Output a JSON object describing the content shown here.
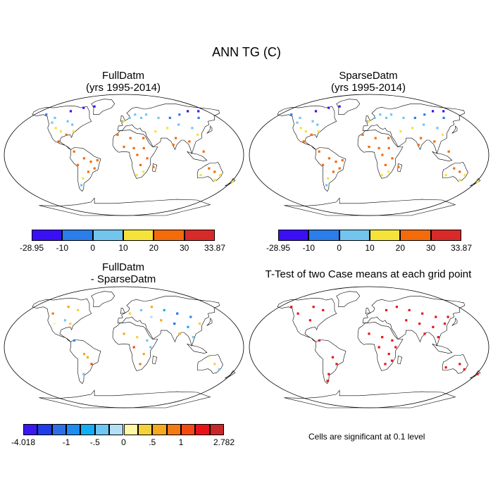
{
  "figure": {
    "title": "ANN TG (C)"
  },
  "panels": {
    "full": {
      "title": "FullDatm",
      "subtitle": "(yrs 1995-2014)"
    },
    "sparse": {
      "title": "SparseDatm",
      "subtitle": "(yrs 1995-2014)"
    },
    "diff": {
      "title": "FullDatm",
      "subtitle": "- SparseDatm"
    },
    "ttest": {
      "title": "T-Test of two Case means at each grid point",
      "note": "Cells are significant at 0.1 level"
    }
  },
  "colorbar_abs": {
    "colors": [
      "#3a0ff5",
      "#2b7de9",
      "#72c5ef",
      "#f6e33a",
      "#f46b0a",
      "#d92a2a"
    ],
    "labels": [
      "-28.95",
      "-10",
      "0",
      "10",
      "20",
      "30",
      "33.87"
    ]
  },
  "colorbar_diff": {
    "colors": [
      "#3a18f0",
      "#1f3ee8",
      "#2e6fe6",
      "#1e8cf0",
      "#14aef5",
      "#6ec6f2",
      "#b4e0f6",
      "#fff7a8",
      "#f6d23a",
      "#f6a81e",
      "#f47a12",
      "#f44a12",
      "#e8121a",
      "#c8282a"
    ],
    "labels": [
      "-4.018",
      "-1",
      "-.5",
      "0",
      ".5",
      "1",
      "2.782"
    ]
  },
  "map_points": {
    "full": [
      {
        "x": -100,
        "y": 65,
        "v": -20
      },
      {
        "x": -80,
        "y": 70,
        "v": -25
      },
      {
        "x": -60,
        "y": 72,
        "v": -28
      },
      {
        "x": -140,
        "y": 60,
        "v": -5
      },
      {
        "x": -120,
        "y": 55,
        "v": 2
      },
      {
        "x": -95,
        "y": 50,
        "v": 4
      },
      {
        "x": -85,
        "y": 45,
        "v": 8
      },
      {
        "x": -100,
        "y": 35,
        "v": 15
      },
      {
        "x": -110,
        "y": 40,
        "v": 10
      },
      {
        "x": -90,
        "y": 30,
        "v": 20
      },
      {
        "x": -80,
        "y": 35,
        "v": 16
      },
      {
        "x": -120,
        "y": 48,
        "v": 9
      },
      {
        "x": -100,
        "y": 20,
        "v": 24
      },
      {
        "x": -75,
        "y": 5,
        "v": 26
      },
      {
        "x": -60,
        "y": -5,
        "v": 27
      },
      {
        "x": -50,
        "y": -10,
        "v": 26
      },
      {
        "x": -45,
        "y": -20,
        "v": 24
      },
      {
        "x": -55,
        "y": -25,
        "v": 20
      },
      {
        "x": -65,
        "y": -35,
        "v": 15
      },
      {
        "x": -70,
        "y": -45,
        "v": 8
      },
      {
        "x": -40,
        "y": -8,
        "v": 26
      },
      {
        "x": -70,
        "y": -15,
        "v": 22
      },
      {
        "x": 0,
        "y": 50,
        "v": 10
      },
      {
        "x": 10,
        "y": 55,
        "v": 8
      },
      {
        "x": 20,
        "y": 60,
        "v": 4
      },
      {
        "x": 30,
        "y": 55,
        "v": 6
      },
      {
        "x": 40,
        "y": 60,
        "v": 2
      },
      {
        "x": 60,
        "y": 55,
        "v": 1
      },
      {
        "x": 80,
        "y": 55,
        "v": -2
      },
      {
        "x": 100,
        "y": 60,
        "v": -8
      },
      {
        "x": 120,
        "y": 65,
        "v": -12
      },
      {
        "x": 130,
        "y": 55,
        "v": -5
      },
      {
        "x": 140,
        "y": 65,
        "v": -15
      },
      {
        "x": 90,
        "y": 45,
        "v": 5
      },
      {
        "x": 110,
        "y": 40,
        "v": 9
      },
      {
        "x": 70,
        "y": 40,
        "v": 12
      },
      {
        "x": 50,
        "y": 35,
        "v": 18
      },
      {
        "x": 80,
        "y": 25,
        "v": 26
      },
      {
        "x": 100,
        "y": 20,
        "v": 27
      },
      {
        "x": 115,
        "y": 30,
        "v": 19
      },
      {
        "x": 75,
        "y": 15,
        "v": 28
      },
      {
        "x": 120,
        "y": 5,
        "v": 27
      },
      {
        "x": -10,
        "y": 30,
        "v": 20
      },
      {
        "x": 10,
        "y": 25,
        "v": 26
      },
      {
        "x": 30,
        "y": 25,
        "v": 27
      },
      {
        "x": 0,
        "y": 12,
        "v": 29
      },
      {
        "x": 15,
        "y": 10,
        "v": 28
      },
      {
        "x": 30,
        "y": 10,
        "v": 27
      },
      {
        "x": 20,
        "y": 0,
        "v": 25
      },
      {
        "x": 35,
        "y": -5,
        "v": 24
      },
      {
        "x": 25,
        "y": -15,
        "v": 22
      },
      {
        "x": 30,
        "y": -25,
        "v": 19
      },
      {
        "x": 20,
        "y": -30,
        "v": 17
      },
      {
        "x": 45,
        "y": -18,
        "v": 24
      },
      {
        "x": 140,
        "y": -25,
        "v": 24
      },
      {
        "x": 130,
        "y": -20,
        "v": 27
      },
      {
        "x": 150,
        "y": -30,
        "v": 18
      },
      {
        "x": 145,
        "y": -37,
        "v": 15
      },
      {
        "x": 120,
        "y": -30,
        "v": 19
      },
      {
        "x": 175,
        "y": -40,
        "v": 12
      }
    ],
    "sparse": [
      {
        "x": -100,
        "y": 65,
        "v": -19
      },
      {
        "x": -80,
        "y": 70,
        "v": -24
      },
      {
        "x": -60,
        "y": 72,
        "v": -27
      },
      {
        "x": -140,
        "y": 60,
        "v": -4
      },
      {
        "x": -120,
        "y": 55,
        "v": 3
      },
      {
        "x": -95,
        "y": 50,
        "v": 5
      },
      {
        "x": -85,
        "y": 45,
        "v": 9
      },
      {
        "x": -100,
        "y": 35,
        "v": 15
      },
      {
        "x": -110,
        "y": 40,
        "v": 11
      },
      {
        "x": -90,
        "y": 30,
        "v": 21
      },
      {
        "x": -80,
        "y": 35,
        "v": 16
      },
      {
        "x": -120,
        "y": 48,
        "v": 9
      },
      {
        "x": -100,
        "y": 20,
        "v": 24
      },
      {
        "x": -75,
        "y": 5,
        "v": 26
      },
      {
        "x": -60,
        "y": -5,
        "v": 27
      },
      {
        "x": -50,
        "y": -10,
        "v": 26
      },
      {
        "x": -45,
        "y": -20,
        "v": 24
      },
      {
        "x": -55,
        "y": -25,
        "v": 20
      },
      {
        "x": -65,
        "y": -35,
        "v": 15
      },
      {
        "x": -70,
        "y": -45,
        "v": 8
      },
      {
        "x": -40,
        "y": -8,
        "v": 26
      },
      {
        "x": -70,
        "y": -15,
        "v": 22
      },
      {
        "x": 0,
        "y": 50,
        "v": 10
      },
      {
        "x": 10,
        "y": 55,
        "v": 8
      },
      {
        "x": 20,
        "y": 60,
        "v": 4
      },
      {
        "x": 30,
        "y": 55,
        "v": 6
      },
      {
        "x": 40,
        "y": 60,
        "v": 2
      },
      {
        "x": 60,
        "y": 55,
        "v": 1
      },
      {
        "x": 80,
        "y": 55,
        "v": -2
      },
      {
        "x": 100,
        "y": 60,
        "v": -7
      },
      {
        "x": 120,
        "y": 65,
        "v": -12
      },
      {
        "x": 130,
        "y": 55,
        "v": -5
      },
      {
        "x": 140,
        "y": 65,
        "v": -14
      },
      {
        "x": 90,
        "y": 45,
        "v": 5
      },
      {
        "x": 110,
        "y": 40,
        "v": 9
      },
      {
        "x": 70,
        "y": 40,
        "v": 12
      },
      {
        "x": 50,
        "y": 35,
        "v": 18
      },
      {
        "x": 80,
        "y": 25,
        "v": 26
      },
      {
        "x": 100,
        "y": 20,
        "v": 27
      },
      {
        "x": 115,
        "y": 30,
        "v": 19
      },
      {
        "x": 75,
        "y": 15,
        "v": 28
      },
      {
        "x": 120,
        "y": 5,
        "v": 27
      },
      {
        "x": -10,
        "y": 30,
        "v": 20
      },
      {
        "x": 10,
        "y": 25,
        "v": 26
      },
      {
        "x": 30,
        "y": 25,
        "v": 27
      },
      {
        "x": 0,
        "y": 12,
        "v": 29
      },
      {
        "x": 15,
        "y": 10,
        "v": 28
      },
      {
        "x": 30,
        "y": 10,
        "v": 27
      },
      {
        "x": 20,
        "y": 0,
        "v": 25
      },
      {
        "x": 35,
        "y": -5,
        "v": 24
      },
      {
        "x": 25,
        "y": -15,
        "v": 22
      },
      {
        "x": 30,
        "y": -25,
        "v": 19
      },
      {
        "x": 20,
        "y": -30,
        "v": 17
      },
      {
        "x": 45,
        "y": -18,
        "v": 24
      },
      {
        "x": 140,
        "y": -25,
        "v": 24
      },
      {
        "x": 130,
        "y": -20,
        "v": 27
      },
      {
        "x": 150,
        "y": -30,
        "v": 18
      },
      {
        "x": 145,
        "y": -37,
        "v": 15
      },
      {
        "x": 120,
        "y": -30,
        "v": 19
      },
      {
        "x": 175,
        "y": -40,
        "v": 12
      }
    ],
    "diff": [
      {
        "x": -100,
        "y": 60,
        "v": 0.6
      },
      {
        "x": -80,
        "y": 55,
        "v": 0.3
      },
      {
        "x": -120,
        "y": 50,
        "v": 0.8
      },
      {
        "x": -95,
        "y": 40,
        "v": -0.4
      },
      {
        "x": -85,
        "y": 35,
        "v": 0.4
      },
      {
        "x": -110,
        "y": 35,
        "v": 0.2
      },
      {
        "x": -75,
        "y": 10,
        "v": -0.8
      },
      {
        "x": -60,
        "y": -10,
        "v": 0.5
      },
      {
        "x": -50,
        "y": -25,
        "v": 1.2
      },
      {
        "x": -65,
        "y": -40,
        "v": -0.3
      },
      {
        "x": -55,
        "y": -15,
        "v": 0.6
      },
      {
        "x": 10,
        "y": 50,
        "v": 0.4
      },
      {
        "x": 30,
        "y": 55,
        "v": -0.5
      },
      {
        "x": 50,
        "y": 60,
        "v": 0.6
      },
      {
        "x": 70,
        "y": 55,
        "v": -0.7
      },
      {
        "x": 90,
        "y": 50,
        "v": -1.3
      },
      {
        "x": 110,
        "y": 45,
        "v": -0.9
      },
      {
        "x": 120,
        "y": 35,
        "v": 0.3
      },
      {
        "x": 80,
        "y": 35,
        "v": -1.5
      },
      {
        "x": 100,
        "y": 30,
        "v": -0.6
      },
      {
        "x": 60,
        "y": 40,
        "v": 0.5
      },
      {
        "x": 45,
        "y": 45,
        "v": -0.2
      },
      {
        "x": 85,
        "y": 20,
        "v": 0.7
      },
      {
        "x": 105,
        "y": 15,
        "v": -0.4
      },
      {
        "x": 0,
        "y": 20,
        "v": 0.5
      },
      {
        "x": 20,
        "y": 15,
        "v": 0.3
      },
      {
        "x": 35,
        "y": 10,
        "v": -0.3
      },
      {
        "x": 15,
        "y": 0,
        "v": 1.1
      },
      {
        "x": 30,
        "y": -10,
        "v": 0.6
      },
      {
        "x": 25,
        "y": -25,
        "v": 0.8
      },
      {
        "x": 40,
        "y": 0,
        "v": -0.5
      },
      {
        "x": 140,
        "y": -25,
        "v": 0.4
      },
      {
        "x": 130,
        "y": -15,
        "v": 0.2
      },
      {
        "x": 150,
        "y": -33,
        "v": -0.3
      }
    ],
    "ttest": [
      {
        "x": -100,
        "y": 60
      },
      {
        "x": -80,
        "y": 55
      },
      {
        "x": -120,
        "y": 50
      },
      {
        "x": -95,
        "y": 40
      },
      {
        "x": -75,
        "y": 10
      },
      {
        "x": -50,
        "y": -25
      },
      {
        "x": -65,
        "y": -40
      },
      {
        "x": -70,
        "y": -50
      },
      {
        "x": -55,
        "y": -15
      },
      {
        "x": -140,
        "y": 60
      },
      {
        "x": 30,
        "y": 55
      },
      {
        "x": 50,
        "y": 60
      },
      {
        "x": 70,
        "y": 55
      },
      {
        "x": 90,
        "y": 50
      },
      {
        "x": 110,
        "y": 45
      },
      {
        "x": 80,
        "y": 35
      },
      {
        "x": 100,
        "y": 30
      },
      {
        "x": 60,
        "y": 40
      },
      {
        "x": 85,
        "y": 20
      },
      {
        "x": 105,
        "y": 15
      },
      {
        "x": 120,
        "y": 35
      },
      {
        "x": 130,
        "y": 45
      },
      {
        "x": 0,
        "y": 20
      },
      {
        "x": 20,
        "y": 15
      },
      {
        "x": 35,
        "y": 10
      },
      {
        "x": 15,
        "y": 0
      },
      {
        "x": 30,
        "y": -10
      },
      {
        "x": 25,
        "y": -25
      },
      {
        "x": 40,
        "y": 0
      },
      {
        "x": 35,
        "y": -20
      },
      {
        "x": 140,
        "y": -25
      },
      {
        "x": 150,
        "y": -33
      },
      {
        "x": 175,
        "y": -40
      },
      {
        "x": 120,
        "y": -30
      }
    ]
  }
}
